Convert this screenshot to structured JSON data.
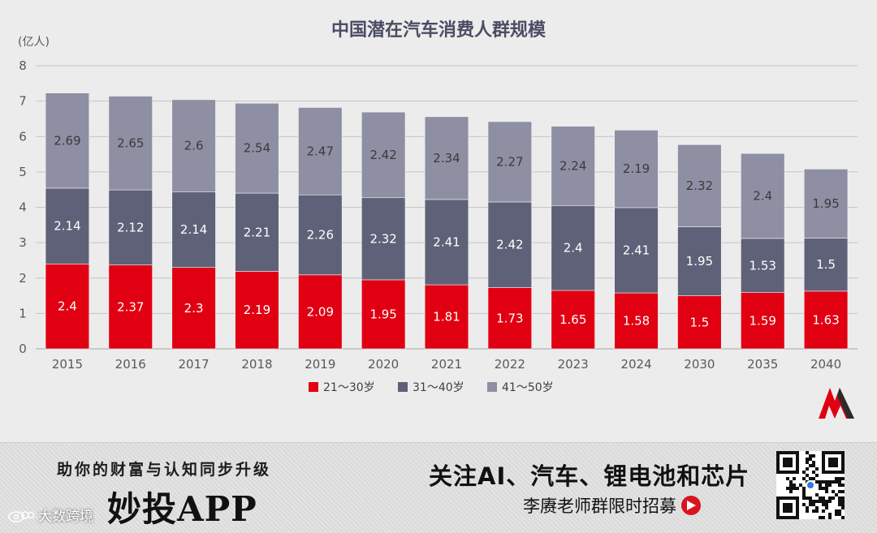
{
  "chart_data": {
    "type": "stacked-bar",
    "title": "中国潜在汽车消费人群规模",
    "unit": "(亿人)",
    "categories": [
      "2015",
      "2016",
      "2017",
      "2018",
      "2019",
      "2020",
      "2021",
      "2022",
      "2023",
      "2024",
      "2030",
      "2035",
      "2040"
    ],
    "series": [
      {
        "name": "21～30岁",
        "color": "#e00012",
        "values": [
          2.4,
          2.37,
          2.3,
          2.19,
          2.09,
          1.95,
          1.81,
          1.73,
          1.65,
          1.58,
          1.5,
          1.59,
          1.63
        ]
      },
      {
        "name": "31～40岁",
        "color": "#5f6178",
        "values": [
          2.14,
          2.12,
          2.14,
          2.21,
          2.26,
          2.32,
          2.41,
          2.42,
          2.4,
          2.41,
          1.95,
          1.53,
          1.5
        ]
      },
      {
        "name": "41～50岁",
        "color": "#8e8fa3",
        "values": [
          2.69,
          2.65,
          2.6,
          2.54,
          2.47,
          2.42,
          2.34,
          2.27,
          2.24,
          2.19,
          2.32,
          2.4,
          1.95
        ]
      }
    ],
    "ylim": [
      0,
      8
    ],
    "yticks": [
      0,
      1,
      2,
      3,
      4,
      5,
      6,
      7,
      8
    ],
    "grid": true,
    "legend_position": "bottom-center"
  },
  "banner": {
    "slogan": "助你的财富与认知同步升级",
    "app_name": "妙投APP",
    "headline": "关注AI、汽车、锂电池和芯片",
    "recruit": "李赓老师群限时招募",
    "watermark": "大数跨境",
    "icons": {
      "logo": "m-logo-icon",
      "arrow": "arrow-right-circle-icon",
      "qr": "qr-code-icon",
      "weibo": "weibo-icon"
    }
  }
}
